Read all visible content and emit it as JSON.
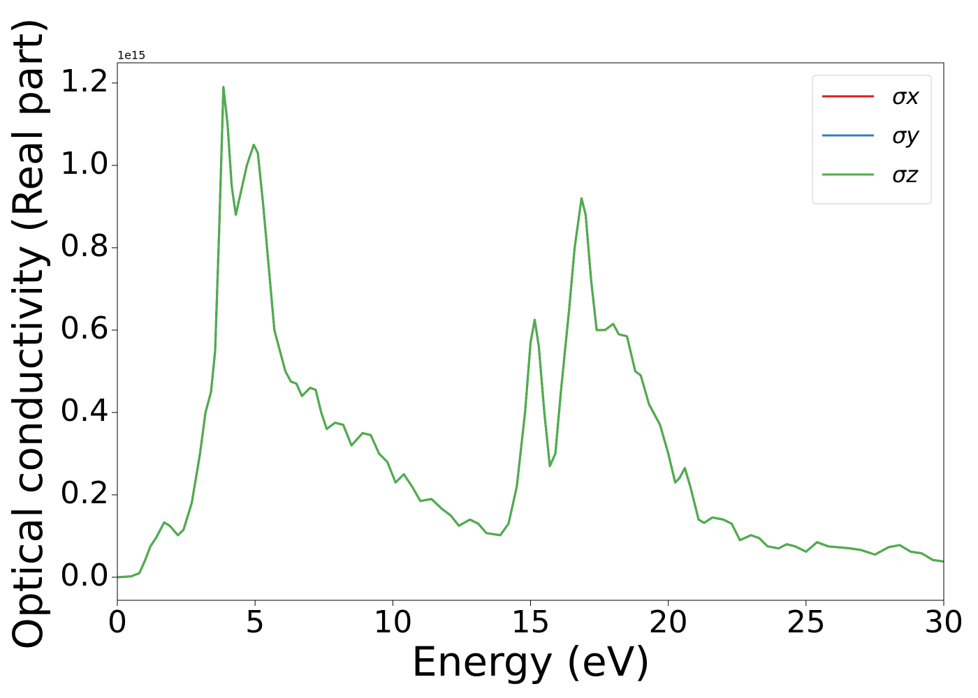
{
  "chart_data": {
    "type": "line",
    "offset_text": "1e15",
    "xlabel": "Energy (eV)",
    "ylabel": "Optical conductivity (Real part)",
    "xlim": [
      0,
      30
    ],
    "xticks": [
      0,
      5,
      10,
      15,
      20,
      25,
      30
    ],
    "ylim": [
      -0.056,
      1.249
    ],
    "yticks": [
      {
        "value": 0,
        "label": "0.0"
      },
      0.2,
      0.4,
      0.6,
      0.8,
      {
        "value": 1,
        "label": "1.0"
      },
      1.2
    ],
    "legend": "upper right",
    "x": [
      0,
      0.5,
      0.8,
      1.0,
      1.2,
      1.4,
      1.7,
      1.9,
      2.2,
      2.4,
      2.7,
      3.0,
      3.2,
      3.4,
      3.55,
      3.7,
      3.85,
      4.0,
      4.15,
      4.3,
      4.5,
      4.7,
      4.95,
      5.1,
      5.3,
      5.5,
      5.7,
      5.9,
      6.1,
      6.3,
      6.5,
      6.7,
      7.0,
      7.2,
      7.4,
      7.6,
      7.9,
      8.2,
      8.5,
      8.9,
      9.2,
      9.5,
      9.8,
      10.1,
      10.4,
      10.7,
      11.0,
      11.4,
      11.8,
      12.1,
      12.4,
      12.8,
      13.1,
      13.4,
      13.9,
      14.2,
      14.5,
      14.8,
      15.0,
      15.15,
      15.3,
      15.5,
      15.7,
      15.9,
      16.1,
      16.4,
      16.6,
      16.85,
      17.0,
      17.2,
      17.4,
      17.7,
      18.0,
      18.2,
      18.5,
      18.8,
      19.0,
      19.3,
      19.7,
      20.0,
      20.25,
      20.4,
      20.6,
      20.8,
      21.1,
      21.3,
      21.6,
      22.0,
      22.3,
      22.6,
      23.0,
      23.3,
      23.6,
      24.0,
      24.3,
      24.6,
      25.0,
      25.4,
      25.8,
      26.3,
      26.6,
      27.0,
      27.5,
      28.0,
      28.4,
      28.8,
      29.2,
      29.6,
      30.0
    ],
    "series": [
      {
        "name": "σx",
        "color": "#e41a1c",
        "values": [
          0,
          0.002,
          0.01,
          0.04,
          0.075,
          0.095,
          0.133,
          0.125,
          0.102,
          0.115,
          0.18,
          0.3,
          0.4,
          0.45,
          0.55,
          0.85,
          1.19,
          1.1,
          0.95,
          0.88,
          0.94,
          1.0,
          1.05,
          1.03,
          0.9,
          0.75,
          0.6,
          0.55,
          0.5,
          0.475,
          0.47,
          0.44,
          0.46,
          0.455,
          0.4,
          0.36,
          0.375,
          0.37,
          0.32,
          0.35,
          0.345,
          0.3,
          0.28,
          0.23,
          0.25,
          0.22,
          0.185,
          0.19,
          0.165,
          0.15,
          0.125,
          0.14,
          0.13,
          0.107,
          0.102,
          0.13,
          0.22,
          0.4,
          0.57,
          0.625,
          0.56,
          0.4,
          0.27,
          0.3,
          0.45,
          0.65,
          0.8,
          0.92,
          0.88,
          0.72,
          0.6,
          0.6,
          0.615,
          0.59,
          0.585,
          0.5,
          0.49,
          0.42,
          0.37,
          0.3,
          0.23,
          0.24,
          0.265,
          0.22,
          0.14,
          0.132,
          0.145,
          0.14,
          0.13,
          0.09,
          0.102,
          0.095,
          0.075,
          0.07,
          0.08,
          0.075,
          0.062,
          0.085,
          0.075,
          0.072,
          0.07,
          0.066,
          0.055,
          0.073,
          0.078,
          0.062,
          0.058,
          0.042,
          0.038
        ]
      },
      {
        "name": "σy",
        "color": "#377eb8",
        "values": [
          0,
          0.002,
          0.01,
          0.04,
          0.075,
          0.095,
          0.133,
          0.125,
          0.102,
          0.115,
          0.18,
          0.3,
          0.4,
          0.45,
          0.55,
          0.85,
          1.19,
          1.1,
          0.95,
          0.88,
          0.94,
          1.0,
          1.05,
          1.03,
          0.9,
          0.75,
          0.6,
          0.55,
          0.5,
          0.475,
          0.47,
          0.44,
          0.46,
          0.455,
          0.4,
          0.36,
          0.375,
          0.37,
          0.32,
          0.35,
          0.345,
          0.3,
          0.28,
          0.23,
          0.25,
          0.22,
          0.185,
          0.19,
          0.165,
          0.15,
          0.125,
          0.14,
          0.13,
          0.107,
          0.102,
          0.13,
          0.22,
          0.4,
          0.57,
          0.625,
          0.56,
          0.4,
          0.27,
          0.3,
          0.45,
          0.65,
          0.8,
          0.92,
          0.88,
          0.72,
          0.6,
          0.6,
          0.615,
          0.59,
          0.585,
          0.5,
          0.49,
          0.42,
          0.37,
          0.3,
          0.23,
          0.24,
          0.265,
          0.22,
          0.14,
          0.132,
          0.145,
          0.14,
          0.13,
          0.09,
          0.102,
          0.095,
          0.075,
          0.07,
          0.08,
          0.075,
          0.062,
          0.085,
          0.075,
          0.072,
          0.07,
          0.066,
          0.055,
          0.073,
          0.078,
          0.062,
          0.058,
          0.042,
          0.038
        ]
      },
      {
        "name": "σz",
        "color": "#4daf4a",
        "values": [
          0,
          0.002,
          0.01,
          0.04,
          0.075,
          0.095,
          0.133,
          0.125,
          0.102,
          0.115,
          0.18,
          0.3,
          0.4,
          0.45,
          0.55,
          0.85,
          1.19,
          1.1,
          0.95,
          0.88,
          0.94,
          1.0,
          1.05,
          1.03,
          0.9,
          0.75,
          0.6,
          0.55,
          0.5,
          0.475,
          0.47,
          0.44,
          0.46,
          0.455,
          0.4,
          0.36,
          0.375,
          0.37,
          0.32,
          0.35,
          0.345,
          0.3,
          0.28,
          0.23,
          0.25,
          0.22,
          0.185,
          0.19,
          0.165,
          0.15,
          0.125,
          0.14,
          0.13,
          0.107,
          0.102,
          0.13,
          0.22,
          0.4,
          0.57,
          0.625,
          0.56,
          0.4,
          0.27,
          0.3,
          0.45,
          0.65,
          0.8,
          0.92,
          0.88,
          0.72,
          0.6,
          0.6,
          0.615,
          0.59,
          0.585,
          0.5,
          0.49,
          0.42,
          0.37,
          0.3,
          0.23,
          0.24,
          0.265,
          0.22,
          0.14,
          0.132,
          0.145,
          0.14,
          0.13,
          0.09,
          0.102,
          0.095,
          0.075,
          0.07,
          0.08,
          0.075,
          0.062,
          0.085,
          0.075,
          0.072,
          0.07,
          0.066,
          0.055,
          0.073,
          0.078,
          0.062,
          0.058,
          0.042,
          0.038
        ]
      }
    ]
  }
}
